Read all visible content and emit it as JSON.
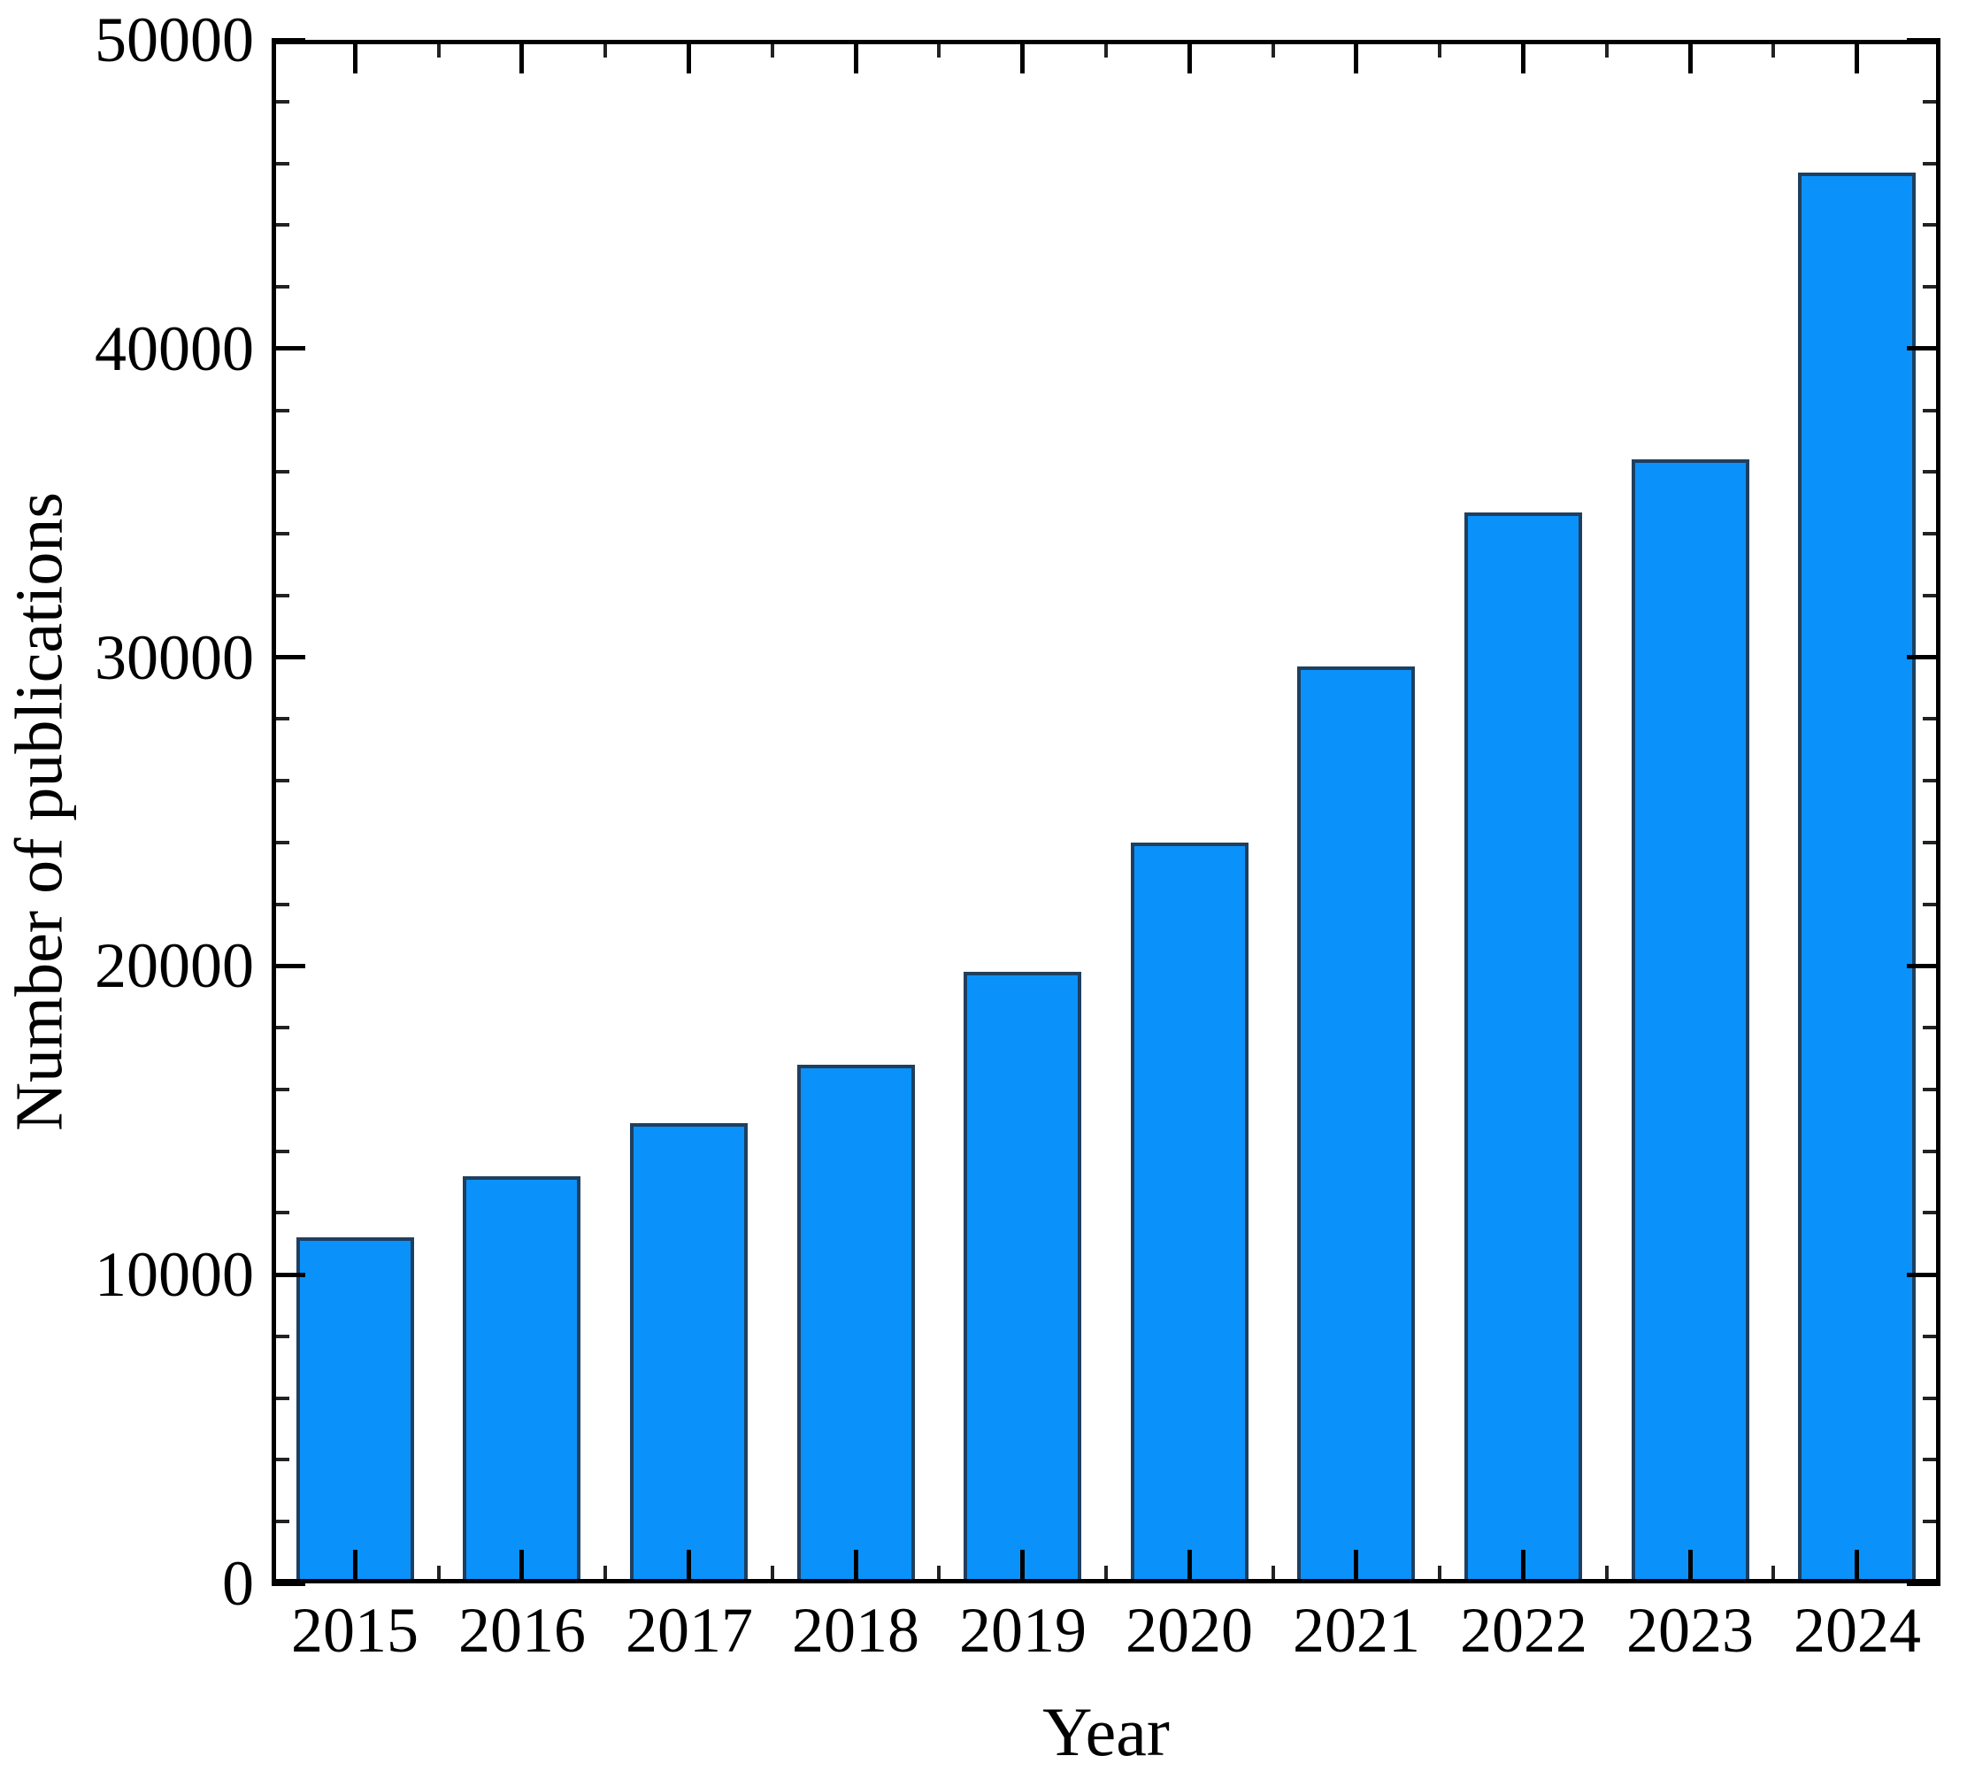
{
  "chart_data": {
    "type": "bar",
    "title": "",
    "xlabel": "Year",
    "ylabel": "Number of publications",
    "categories": [
      "2015",
      "2016",
      "2017",
      "2018",
      "2019",
      "2020",
      "2021",
      "2022",
      "2023",
      "2024"
    ],
    "values": [
      11200,
      13200,
      14900,
      16800,
      19800,
      24000,
      29700,
      34700,
      36400,
      45700
    ],
    "ylim": [
      0,
      50000
    ],
    "ytick_major_interval": 10000,
    "ytick_minor_interval": 2000,
    "ytick_labels": [
      "0",
      "10000",
      "20000",
      "30000",
      "40000",
      "50000"
    ],
    "xtick_minor": "midpoints-between-years",
    "grid": false,
    "legend_position": "none",
    "bar_fill_color": "#0a92fa",
    "bar_edge_color": "#1f3f5f",
    "axis_color": "#000000",
    "background_color": "#ffffff"
  }
}
